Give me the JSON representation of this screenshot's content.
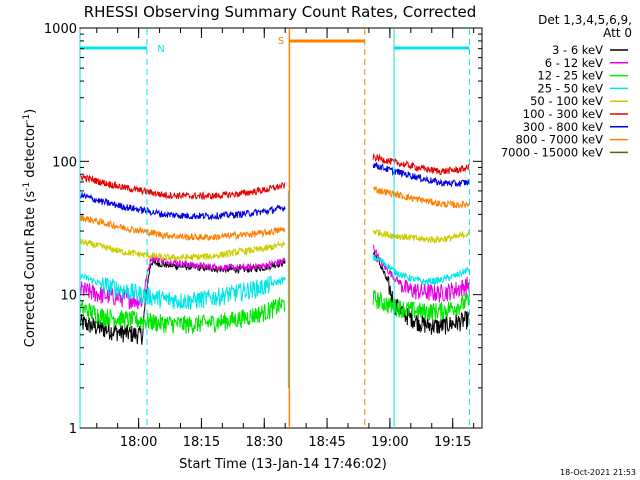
{
  "chart_data": {
    "type": "line",
    "title": "RHESSI Observing Summary Count Rates, Corrected",
    "xlabel": "Start Time (13-Jan-14 17:46:02)",
    "ylabel": "Corrected Count Rate (s",
    "ylabel_sup1": "-1",
    "ylabel_mid": " detector",
    "ylabel_sup2": "-1",
    "ylabel_end": ")",
    "x_unit": "minutes after 17:46:02",
    "xlim": [
      0,
      96
    ],
    "ylim": [
      1,
      1000
    ],
    "yscale": "log",
    "x_ticks": [
      {
        "t": 14,
        "label": "18:00"
      },
      {
        "t": 29,
        "label": "18:15"
      },
      {
        "t": 44,
        "label": "18:30"
      },
      {
        "t": 59,
        "label": "18:45"
      },
      {
        "t": 74,
        "label": "19:00"
      },
      {
        "t": 89,
        "label": "19:15"
      }
    ],
    "y_ticks": [
      {
        "v": 1,
        "label": "1"
      },
      {
        "v": 10,
        "label": "10"
      },
      {
        "v": 100,
        "label": "100"
      },
      {
        "v": 1000,
        "label": "1000"
      }
    ],
    "legend": {
      "header1": "Det 1,3,4,5,6,9,",
      "header2": "Att 0",
      "placement": "right"
    },
    "series": [
      {
        "name": "3 - 6 keV",
        "color": "#000000",
        "seg1": [
          [
            0,
            6.2
          ],
          [
            5,
            5.6
          ],
          [
            10,
            5.2
          ],
          [
            15,
            5.0
          ],
          [
            17,
            17.5
          ],
          [
            22,
            16.5
          ],
          [
            28,
            16.0
          ],
          [
            34,
            15.5
          ],
          [
            40,
            15.5
          ],
          [
            44,
            16.0
          ],
          [
            49,
            17.5
          ]
        ],
        "seg2": [
          [
            70,
            21
          ],
          [
            72,
            16
          ],
          [
            75,
            8.5
          ],
          [
            78,
            7.0
          ],
          [
            82,
            6.0
          ],
          [
            86,
            5.8
          ],
          [
            90,
            6.2
          ],
          [
            93,
            6.6
          ]
        ]
      },
      {
        "name": "6 - 12 keV",
        "color": "#e600e6",
        "seg1": [
          [
            0,
            11.0
          ],
          [
            5,
            10.0
          ],
          [
            10,
            9.5
          ],
          [
            15,
            9.0
          ],
          [
            17,
            19.0
          ],
          [
            22,
            17.5
          ],
          [
            28,
            16.5
          ],
          [
            34,
            16.0
          ],
          [
            40,
            16.0
          ],
          [
            44,
            16.5
          ],
          [
            49,
            18.0
          ]
        ],
        "seg2": [
          [
            70,
            23
          ],
          [
            72,
            17
          ],
          [
            75,
            13.5
          ],
          [
            78,
            11.0
          ],
          [
            82,
            10.5
          ],
          [
            86,
            10.3
          ],
          [
            90,
            11.0
          ],
          [
            93,
            12.0
          ]
        ]
      },
      {
        "name": "12 - 25 keV",
        "color": "#00e600",
        "seg1": [
          [
            0,
            8.0
          ],
          [
            5,
            7.0
          ],
          [
            10,
            6.6
          ],
          [
            15,
            6.4
          ],
          [
            20,
            6.1
          ],
          [
            26,
            6.0
          ],
          [
            32,
            6.2
          ],
          [
            38,
            6.6
          ],
          [
            44,
            7.4
          ],
          [
            49,
            8.6
          ]
        ],
        "seg2": [
          [
            70,
            9.5
          ],
          [
            74,
            8.3
          ],
          [
            78,
            7.8
          ],
          [
            82,
            7.5
          ],
          [
            86,
            7.6
          ],
          [
            90,
            8.2
          ],
          [
            93,
            9.0
          ]
        ]
      },
      {
        "name": "25 - 50 keV",
        "color": "#00e6e6",
        "seg1": [
          [
            0,
            14.0
          ],
          [
            5,
            12.0
          ],
          [
            10,
            11.0
          ],
          [
            15,
            10.0
          ],
          [
            20,
            9.3
          ],
          [
            26,
            9.0
          ],
          [
            32,
            9.6
          ],
          [
            38,
            10.5
          ],
          [
            44,
            11.5
          ],
          [
            49,
            13.0
          ]
        ],
        "seg2": [
          [
            70,
            19
          ],
          [
            72,
            18
          ],
          [
            75,
            15
          ],
          [
            78,
            13.5
          ],
          [
            82,
            12.5
          ],
          [
            86,
            12.8
          ],
          [
            90,
            14.0
          ],
          [
            93,
            15.5
          ]
        ]
      },
      {
        "name": "50 - 100 keV",
        "color": "#cccc00",
        "seg1": [
          [
            0,
            25
          ],
          [
            5,
            23
          ],
          [
            10,
            21
          ],
          [
            15,
            20
          ],
          [
            20,
            19
          ],
          [
            26,
            19
          ],
          [
            32,
            19.5
          ],
          [
            38,
            21
          ],
          [
            44,
            22
          ],
          [
            49,
            24
          ]
        ],
        "seg2": [
          [
            70,
            30
          ],
          [
            74,
            28
          ],
          [
            78,
            27
          ],
          [
            82,
            26
          ],
          [
            86,
            26
          ],
          [
            90,
            27
          ],
          [
            93,
            29
          ]
        ]
      },
      {
        "name": "100 - 300 keV",
        "color": "#e60000",
        "seg1": [
          [
            0,
            77
          ],
          [
            5,
            70
          ],
          [
            10,
            64
          ],
          [
            15,
            60
          ],
          [
            20,
            56
          ],
          [
            26,
            55
          ],
          [
            32,
            55
          ],
          [
            38,
            57
          ],
          [
            44,
            61
          ],
          [
            49,
            66
          ]
        ],
        "seg2": [
          [
            70,
            108
          ],
          [
            74,
            100
          ],
          [
            78,
            94
          ],
          [
            82,
            88
          ],
          [
            86,
            84
          ],
          [
            90,
            86
          ],
          [
            93,
            90
          ]
        ]
      },
      {
        "name": "300 - 800 keV",
        "color": "#0000e6",
        "seg1": [
          [
            0,
            56
          ],
          [
            5,
            50
          ],
          [
            10,
            46
          ],
          [
            15,
            43
          ],
          [
            20,
            40
          ],
          [
            26,
            39
          ],
          [
            32,
            39
          ],
          [
            38,
            40
          ],
          [
            44,
            42
          ],
          [
            49,
            45
          ]
        ],
        "seg2": [
          [
            70,
            95
          ],
          [
            74,
            86
          ],
          [
            78,
            80
          ],
          [
            82,
            74
          ],
          [
            86,
            69
          ],
          [
            90,
            68
          ],
          [
            93,
            70
          ]
        ]
      },
      {
        "name": "800 - 7000 keV",
        "color": "#ff8000",
        "seg1": [
          [
            0,
            38
          ],
          [
            5,
            35
          ],
          [
            10,
            32
          ],
          [
            15,
            30
          ],
          [
            20,
            28
          ],
          [
            26,
            27
          ],
          [
            32,
            27
          ],
          [
            38,
            28
          ],
          [
            44,
            29
          ],
          [
            49,
            31
          ]
        ],
        "seg2": [
          [
            70,
            62
          ],
          [
            74,
            58
          ],
          [
            78,
            54
          ],
          [
            82,
            51
          ],
          [
            86,
            48
          ],
          [
            90,
            47
          ],
          [
            93,
            48
          ]
        ]
      },
      {
        "name": "7000 - 15000 keV",
        "color": "#606000",
        "seg1": [],
        "seg2": []
      }
    ],
    "annotations": [
      {
        "label": "N",
        "color": "#00e6e6"
      },
      {
        "label": "S",
        "color": "#ff8000"
      }
    ],
    "night_bars": [
      [
        0,
        16
      ],
      [
        75,
        93
      ]
    ],
    "saa_bar": [
      50,
      68
    ],
    "markers": {
      "night_solid": [
        0,
        75
      ],
      "night_dashed": [
        16,
        93
      ],
      "saa_solid": [
        50
      ],
      "saa_dashed": [
        68
      ]
    },
    "saa_label_at": 49,
    "night_label_at": 17.5
  },
  "footer": {
    "timestamp": "18-Oct-2021 21:53"
  }
}
